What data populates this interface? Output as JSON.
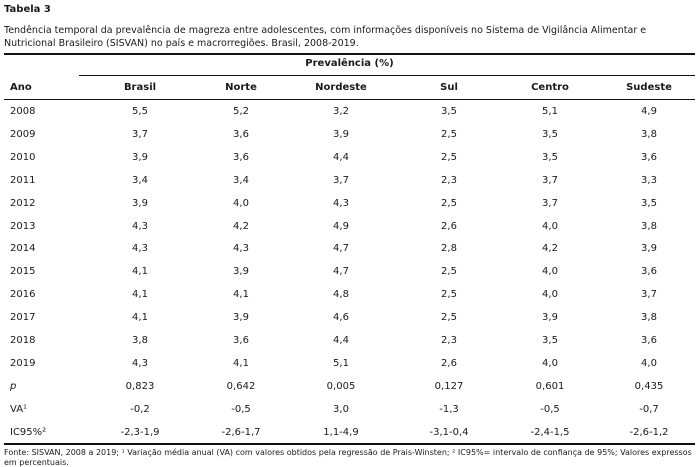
{
  "table_label": "Tabela 3",
  "caption": "Tendência temporal da prevalência de magreza entre adolescentes, com informações disponíveis no Sistema de Vigilância Alimentar e Nutricional Brasileiro (SISVAN) no país e macrorregiões. Brasil, 2008-2019.",
  "group_header": "Prevalência (%)",
  "columns": [
    "Ano",
    "Brasil",
    "Norte",
    "Nordeste",
    "Sul",
    "Centro",
    "Sudeste"
  ],
  "rows": [
    [
      "2008",
      "5,5",
      "5,2",
      "3,2",
      "3,5",
      "5,1",
      "4,9"
    ],
    [
      "2009",
      "3,7",
      "3,6",
      "3,9",
      "2,5",
      "3,5",
      "3,8"
    ],
    [
      "2010",
      "3,9",
      "3,6",
      "4,4",
      "2,5",
      "3,5",
      "3,6"
    ],
    [
      "2011",
      "3,4",
      "3,4",
      "3,7",
      "2,3",
      "3,7",
      "3,3"
    ],
    [
      "2012",
      "3,9",
      "4,0",
      "4,3",
      "2,5",
      "3,7",
      "3,5"
    ],
    [
      "2013",
      "4,3",
      "4,2",
      "4,9",
      "2,6",
      "4,0",
      "3,8"
    ],
    [
      "2014",
      "4,3",
      "4,3",
      "4,7",
      "2,8",
      "4,2",
      "3,9"
    ],
    [
      "2015",
      "4,1",
      "3,9",
      "4,7",
      "2,5",
      "4,0",
      "3,6"
    ],
    [
      "2016",
      "4,1",
      "4,1",
      "4,8",
      "2,5",
      "4,0",
      "3,7"
    ],
    [
      "2017",
      "4,1",
      "3,9",
      "4,6",
      "2,5",
      "3,9",
      "3,8"
    ],
    [
      "2018",
      "3,8",
      "3,6",
      "4,4",
      "2,3",
      "3,5",
      "3,6"
    ],
    [
      "2019",
      "4,3",
      "4,1",
      "5,1",
      "2,6",
      "4,0",
      "4,0"
    ],
    [
      "p",
      "0,823",
      "0,642",
      "0,005",
      "0,127",
      "0,601",
      "0,435"
    ],
    [
      "VA¹",
      "-0,2",
      "-0,5",
      "3,0",
      "-1,3",
      "-0,5",
      "-0,7"
    ],
    [
      "IC95%²",
      "-2,3-1,9",
      "-2,6-1,7",
      "1,1-4,9",
      "-3,1-0,4",
      "-2,4-1,5",
      "-2,6-1,2"
    ]
  ],
  "footer": "Fonte: SISVAN, 2008 a 2019; ¹ Variação média anual (VA) com valores obtidos pela regressão de Prais-Winsten; ² IC95%= intervalo de confiança de 95%; Valores expressos em percentuais."
}
